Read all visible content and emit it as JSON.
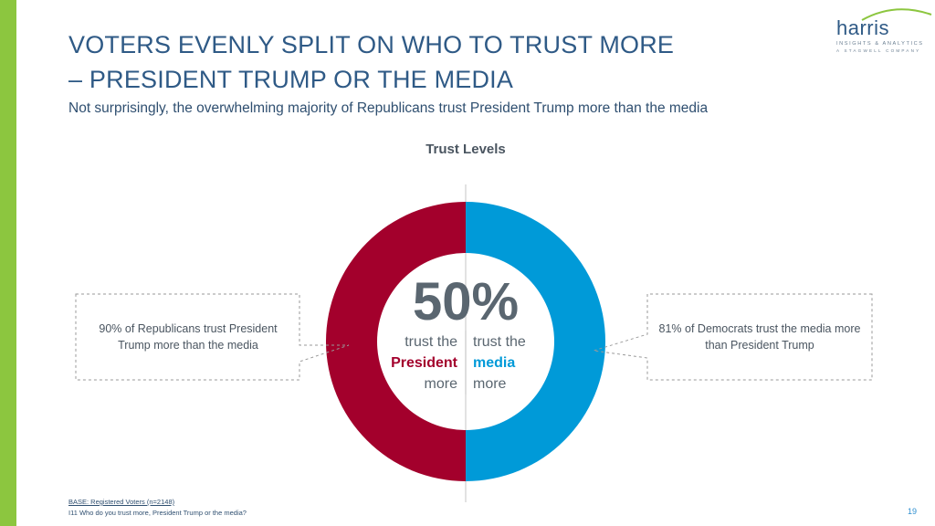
{
  "slide": {
    "title_line1": "VOTERS EVENLY SPLIT ON WHO TO TRUST MORE",
    "title_line2": "– PRESIDENT TRUMP OR THE MEDIA",
    "subtitle": "Not surprisingly, the overwhelming majority of Republicans trust President Trump more than the media",
    "base_note": "BASE: Registered Voters (n=2148)",
    "question_note": "I11 Who do you trust more, President Trump or the media?",
    "page_number": "19"
  },
  "logo": {
    "word": "harris",
    "tagline1": "INSIGHTS & ANALYTICS",
    "tagline2": "A STAGWELL COMPANY",
    "swoosh_color": "#8cc63f"
  },
  "colors": {
    "accent_bar": "#8cc63f",
    "president": "#a3002c",
    "media": "#009ad8"
  },
  "chart_data": {
    "type": "pie",
    "title": "Trust Levels",
    "categories": [
      "trust the President more",
      "trust the media more"
    ],
    "values": [
      50,
      50
    ],
    "center_label": "50%",
    "left_label": {
      "line1": "trust the",
      "line2": "President",
      "line3": "more"
    },
    "right_label": {
      "line1": "trust the",
      "line2": "media",
      "line3": "more"
    },
    "annotations": {
      "left": "90% of Republicans trust President Trump more than the media",
      "right": "81% of Democrats trust the media more than President Trump"
    }
  }
}
